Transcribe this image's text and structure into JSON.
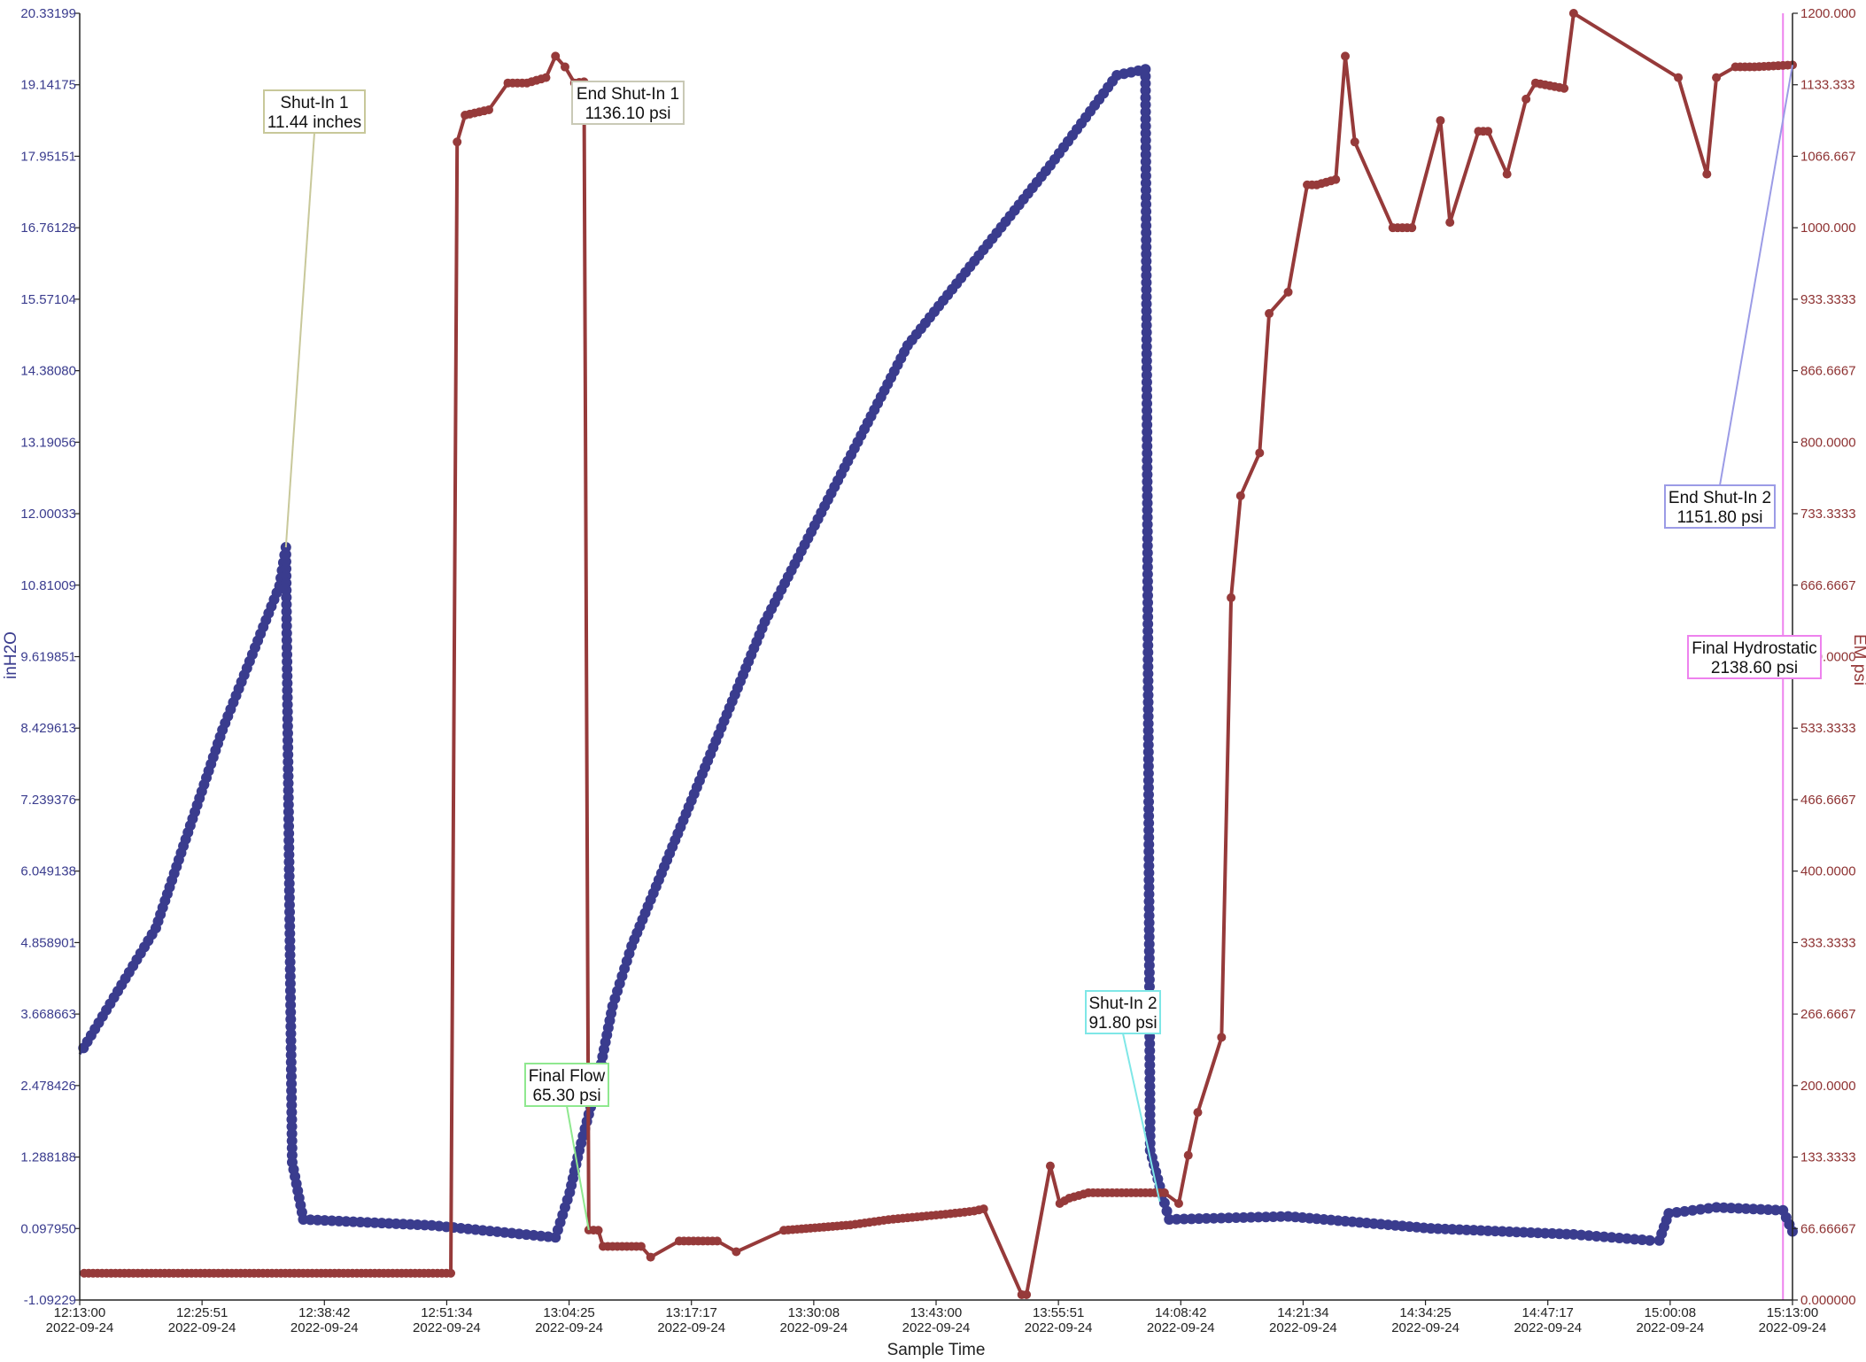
{
  "chart_data": {
    "type": "line",
    "xlabel": "Sample Time",
    "ylabel_left": "inH2O",
    "ylabel_right": "EM psi",
    "x_date": "2022-09-24",
    "x_start": "12:13:00",
    "x_end": "15:13:00",
    "ylim_left": [
      -1.09229,
      20.33199
    ],
    "ylim_right": [
      0,
      1200
    ],
    "left_ticks": [
      "-1.09229",
      "0.097950",
      "1.288188",
      "2.478426",
      "3.668663",
      "4.858901",
      "6.049138",
      "7.239376",
      "8.429613",
      "9.619851",
      "10.81009",
      "12.00033",
      "13.19056",
      "14.38080",
      "15.57104",
      "16.76128",
      "17.95151",
      "19.14175",
      "20.33199"
    ],
    "right_ticks": [
      "0.000000",
      "66.66667",
      "133.3333",
      "200.0000",
      "266.6667",
      "333.3333",
      "400.0000",
      "466.6667",
      "533.3333",
      "600.0000",
      "666.6667",
      "733.3333",
      "800.0000",
      "866.6667",
      "933.3333",
      "1000.000",
      "1066.667",
      "1133.333",
      "1200.000"
    ],
    "x_ticks": [
      "12:13:00",
      "12:25:51",
      "12:38:42",
      "12:51:34",
      "13:04:25",
      "13:17:17",
      "13:30:08",
      "13:43:00",
      "13:55:51",
      "14:08:42",
      "14:21:34",
      "14:34:25",
      "14:47:17",
      "15:00:08",
      "15:13:00"
    ],
    "colors": {
      "inH2O": "#3a3c8e",
      "psi": "#963a3a",
      "hydrostatic": "#ee82ee"
    },
    "series": [
      {
        "name": "inH2O",
        "axis": "left",
        "color": "#3a3c8e",
        "x": [
          "12:13:00",
          "12:21:00",
          "12:28:00",
          "12:34:00",
          "12:34:40",
          "12:35:20",
          "12:36:30",
          "12:50:00",
          "13:03:00",
          "13:04:30",
          "13:05:30",
          "13:07:30",
          "13:09:00",
          "13:11:00",
          "13:25:00",
          "13:40:00",
          "13:55:00",
          "14:02:00",
          "14:05:00",
          "14:05:30",
          "14:06:30",
          "14:07:30",
          "14:20:00",
          "14:35:00",
          "14:50:00",
          "14:58:00",
          "14:59:00",
          "15:00:00",
          "15:05:00",
          "15:12:00",
          "15:13:00"
        ],
        "y": [
          3.0,
          5.1,
          8.4,
          10.8,
          11.44,
          1.2,
          0.25,
          0.15,
          -0.05,
          0.7,
          1.4,
          2.6,
          3.8,
          4.8,
          10.2,
          14.8,
          17.8,
          19.3,
          19.4,
          1.4,
          0.8,
          0.25,
          0.3,
          0.1,
          0.0,
          -0.1,
          -0.1,
          0.35,
          0.45,
          0.4,
          0.05
        ]
      },
      {
        "name": "EM psi",
        "axis": "right",
        "color": "#963a3a",
        "x": [
          "12:13:00",
          "12:52:00",
          "12:52:40",
          "12:53:30",
          "12:56:00",
          "12:58:00",
          "13:00:00",
          "13:02:00",
          "13:03:00",
          "13:04:00",
          "13:05:00",
          "13:06:00",
          "13:06:30",
          "13:07:30",
          "13:08:00",
          "13:12:00",
          "13:13:00",
          "13:16:00",
          "13:20:00",
          "13:22:00",
          "13:27:00",
          "13:34:00",
          "13:38:00",
          "13:44:00",
          "13:47:00",
          "13:48:00",
          "13:52:00",
          "13:52:30",
          "13:55:00",
          "13:56:00",
          "13:57:00",
          "13:59:00",
          "14:03:00",
          "14:07:00",
          "14:08:30",
          "14:09:30",
          "14:10:30",
          "14:13:00",
          "14:14:00",
          "14:15:00",
          "14:17:00",
          "14:18:00",
          "14:20:00",
          "14:22:00",
          "14:23:00",
          "14:25:00",
          "14:26:00",
          "14:27:00",
          "14:31:00",
          "14:33:00",
          "14:36:00",
          "14:37:00",
          "14:40:00",
          "14:41:00",
          "14:43:00",
          "14:45:00",
          "14:46:00",
          "14:49:00",
          "14:50:00",
          "15:01:00",
          "15:04:00",
          "15:05:00",
          "15:07:00",
          "15:09:00",
          "15:13:00"
        ],
        "y": [
          25,
          25,
          1080,
          1105,
          1110,
          1135,
          1135,
          1140,
          1160,
          1150,
          1135,
          1136.1,
          65.3,
          65,
          50,
          50,
          40,
          55,
          55,
          45,
          65,
          70,
          75,
          80,
          83,
          85,
          5,
          5,
          125,
          90,
          95,
          100,
          100,
          100,
          90,
          135,
          175,
          245,
          655,
          750,
          790,
          920,
          940,
          1040,
          1040,
          1045,
          1160,
          1080,
          1000,
          1000,
          1100,
          1005,
          1090,
          1090,
          1050,
          1120,
          1135,
          1130,
          1200,
          1140,
          1050,
          1140,
          1150,
          1150,
          1151.8
        ]
      }
    ],
    "hydrostatic_time": "15:12:00",
    "annotations": [
      {
        "label": "Shut-In 1",
        "value": "11.44 inches",
        "border": "#c8c89a",
        "at_x": "12:34:40",
        "at_y": 11.44,
        "axis": "left"
      },
      {
        "label": "End Shut-In 1",
        "value": "1136.10 psi",
        "border": "#c9c9b6",
        "at_x": "13:06:00",
        "at_y": 1136.1,
        "axis": "right"
      },
      {
        "label": "Final Flow",
        "value": "65.30 psi",
        "border": "#8fe88f",
        "at_x": "13:06:30",
        "at_y": 65.3,
        "axis": "right"
      },
      {
        "label": "Shut-In 2",
        "value": "91.80 psi",
        "border": "#7fe7e7",
        "at_x": "14:06:30",
        "at_y": 91.8,
        "axis": "right"
      },
      {
        "label": "End Shut-In 2",
        "value": "1151.80 psi",
        "border": "#9b9be6",
        "at_x": "15:13:00",
        "at_y": 1151.8,
        "axis": "right"
      },
      {
        "label": "Final Hydrostatic",
        "value": "2138.60 psi",
        "border": "#ee82ee",
        "at_x": "15:12:00",
        "at_y": 600,
        "axis": "right"
      }
    ]
  }
}
